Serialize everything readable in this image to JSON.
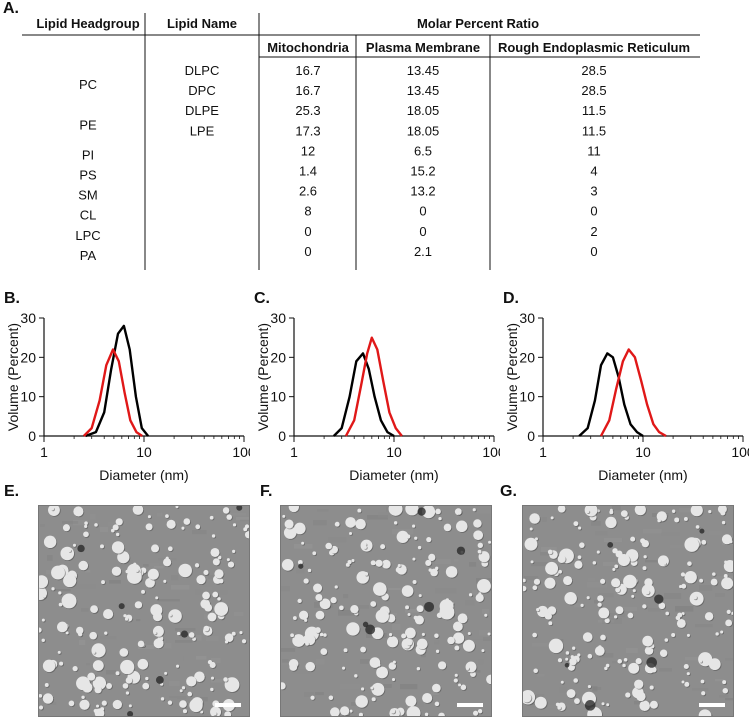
{
  "table_panel": {
    "label": "A.",
    "headers": {
      "headgroup": "Lipid Headgroup",
      "lipid_name": "Lipid Name",
      "molar_ratio": "Molar Percent Ratio",
      "columns": [
        "Mitochondria",
        "Plasma Membrane",
        "Rough Endoplasmic Reticulum"
      ]
    },
    "headgroup_labels": [
      {
        "text": "PC",
        "row_span": [
          0,
          1
        ]
      },
      {
        "text": "PE",
        "row_span": [
          2,
          3
        ]
      },
      {
        "text": "PI",
        "row_span": [
          4,
          4
        ]
      },
      {
        "text": "PS",
        "row_span": [
          5,
          5
        ]
      },
      {
        "text": "SM",
        "row_span": [
          6,
          6
        ]
      },
      {
        "text": "CL",
        "row_span": [
          7,
          7
        ]
      },
      {
        "text": "LPC",
        "row_span": [
          8,
          8
        ]
      },
      {
        "text": "PA",
        "row_span": [
          9,
          9
        ]
      }
    ],
    "rows": [
      {
        "name": "DLPC",
        "values": [
          "16.7",
          "13.45",
          "28.5"
        ]
      },
      {
        "name": "DPC",
        "values": [
          "16.7",
          "13.45",
          "28.5"
        ]
      },
      {
        "name": "DLPE",
        "values": [
          "25.3",
          "18.05",
          "11.5"
        ]
      },
      {
        "name": "LPE",
        "values": [
          "17.3",
          "18.05",
          "11.5"
        ]
      },
      {
        "name": "",
        "values": [
          "12",
          "6.5",
          "11"
        ]
      },
      {
        "name": "",
        "values": [
          "1.4",
          "15.2",
          "4"
        ]
      },
      {
        "name": "",
        "values": [
          "2.6",
          "13.2",
          "3"
        ]
      },
      {
        "name": "",
        "values": [
          "8",
          "0",
          "0"
        ]
      },
      {
        "name": "",
        "values": [
          "0",
          "0",
          "2"
        ]
      },
      {
        "name": "",
        "values": [
          "0",
          "2.1",
          "0"
        ]
      }
    ]
  },
  "chart_data": [
    {
      "label": "B.",
      "type": "line",
      "xscale": "log",
      "xlim": [
        1,
        100
      ],
      "ylim": [
        0,
        30
      ],
      "xticks": [
        "1",
        "10",
        "100"
      ],
      "yticks": [
        "0",
        "10",
        "20",
        "30"
      ],
      "xlabel": "Diameter (nm)",
      "ylabel": "Volume (Percent)",
      "series": [
        {
          "name": "black",
          "color": "#000000",
          "x": [
            2.6,
            3.3,
            4.0,
            4.7,
            5.5,
            6.3,
            7.2,
            8.3,
            9.5,
            11
          ],
          "y": [
            0,
            1,
            6,
            17,
            26,
            28,
            22,
            10,
            2,
            0
          ]
        },
        {
          "name": "red",
          "color": "#e01818",
          "x": [
            2.5,
            3.0,
            3.6,
            4.2,
            4.9,
            5.6,
            6.4,
            7.3,
            8.4,
            9.6
          ],
          "y": [
            0,
            2,
            9,
            18,
            22,
            19,
            11,
            4,
            1,
            0
          ]
        }
      ]
    },
    {
      "label": "C.",
      "type": "line",
      "xscale": "log",
      "xlim": [
        1,
        100
      ],
      "ylim": [
        0,
        30
      ],
      "xticks": [
        "1",
        "10",
        "100"
      ],
      "yticks": [
        "0",
        "10",
        "20",
        "30"
      ],
      "xlabel": "Diameter (nm)",
      "ylabel": "Volume (Percent)",
      "series": [
        {
          "name": "black",
          "color": "#000000",
          "x": [
            2.5,
            3.0,
            3.6,
            4.2,
            4.9,
            5.6,
            6.4,
            7.4,
            8.6,
            10
          ],
          "y": [
            0,
            2,
            10,
            19,
            21,
            17,
            10,
            4,
            1,
            0
          ]
        },
        {
          "name": "red",
          "color": "#e01818",
          "x": [
            3.3,
            4.0,
            4.7,
            5.4,
            6.0,
            6.8,
            7.8,
            9.0,
            10.4,
            12
          ],
          "y": [
            0,
            4,
            13,
            21,
            25,
            22,
            14,
            6,
            2,
            0
          ]
        }
      ]
    },
    {
      "label": "D.",
      "type": "line",
      "xscale": "log",
      "xlim": [
        1,
        100
      ],
      "ylim": [
        0,
        30
      ],
      "xticks": [
        "1",
        "10",
        "100"
      ],
      "yticks": [
        "0",
        "10",
        "20",
        "30"
      ],
      "xlabel": "Diameter (nm)",
      "ylabel": "Volume (Percent)",
      "series": [
        {
          "name": "black",
          "color": "#000000",
          "x": [
            2.3,
            2.8,
            3.3,
            3.8,
            4.4,
            5.0,
            5.7,
            6.5,
            7.5,
            8.7,
            10
          ],
          "y": [
            0,
            2,
            9,
            18,
            21,
            20,
            15,
            8,
            3,
            1,
            0
          ]
        },
        {
          "name": "red",
          "color": "#e01818",
          "x": [
            3.8,
            4.6,
            5.4,
            6.3,
            7.2,
            8.3,
            9.6,
            11,
            12.7,
            14.5,
            17
          ],
          "y": [
            0,
            4,
            12,
            19,
            22,
            20,
            14,
            8,
            3,
            1,
            0
          ]
        }
      ]
    }
  ],
  "tem_panels": [
    {
      "label": "E.",
      "seed": 11
    },
    {
      "label": "F.",
      "seed": 29
    },
    {
      "label": "G.",
      "seed": 47
    }
  ],
  "colors": {
    "red_series": "#e01818",
    "black_series": "#000000",
    "tem_background": "#8d8d8d"
  }
}
